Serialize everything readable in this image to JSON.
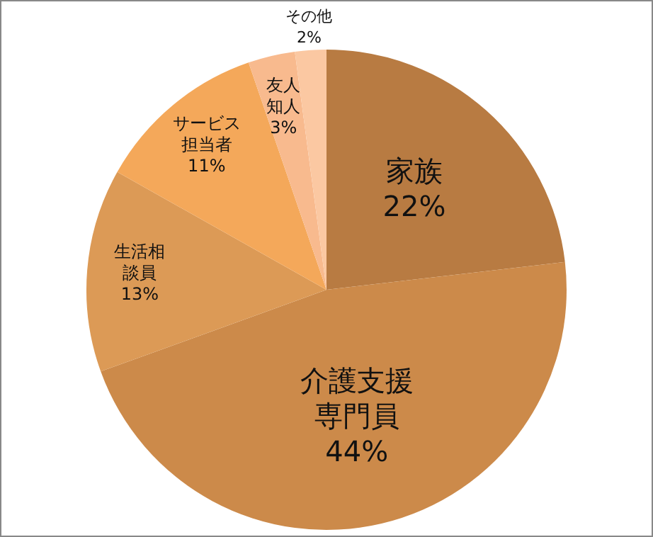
{
  "chart_data": {
    "type": "pie",
    "categories": [
      "家族",
      "介護支援専門員",
      "生活相談員",
      "サービス担当者",
      "友人知人",
      "その他"
    ],
    "values": [
      22,
      44,
      13,
      11,
      3,
      2
    ],
    "value_labels": [
      "22%",
      "44%",
      "13%",
      "11%",
      "3%",
      "2%"
    ],
    "colors": [
      "#b87b42",
      "#cc8a4a",
      "#dc9a56",
      "#f4a85a",
      "#f8ba8e",
      "#fbc8a2"
    ],
    "legend": false
  }
}
